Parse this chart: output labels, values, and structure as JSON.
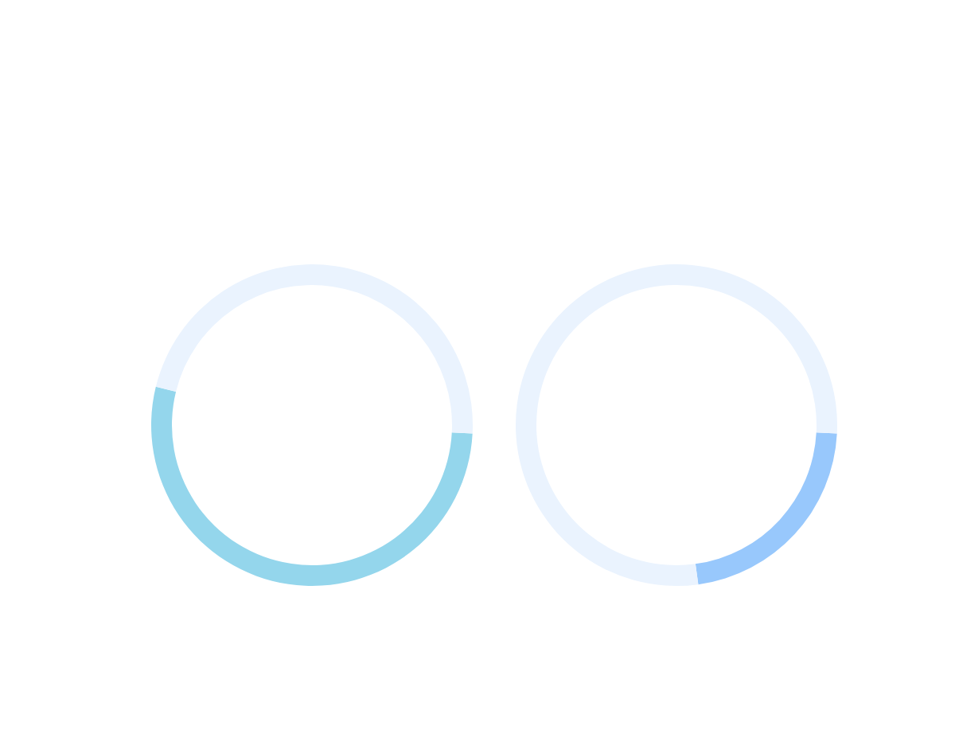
{
  "chart_data": [
    {
      "type": "donut",
      "categories": [
        null,
        null
      ],
      "values": [
        53,
        47
      ],
      "colors": [
        "#94d6ec",
        "#eaf3fe"
      ]
    },
    {
      "type": "donut",
      "categories": [
        null,
        null
      ],
      "values": [
        22,
        78
      ],
      "colors": [
        "#98c8fc",
        "#eaf3fe"
      ]
    }
  ]
}
